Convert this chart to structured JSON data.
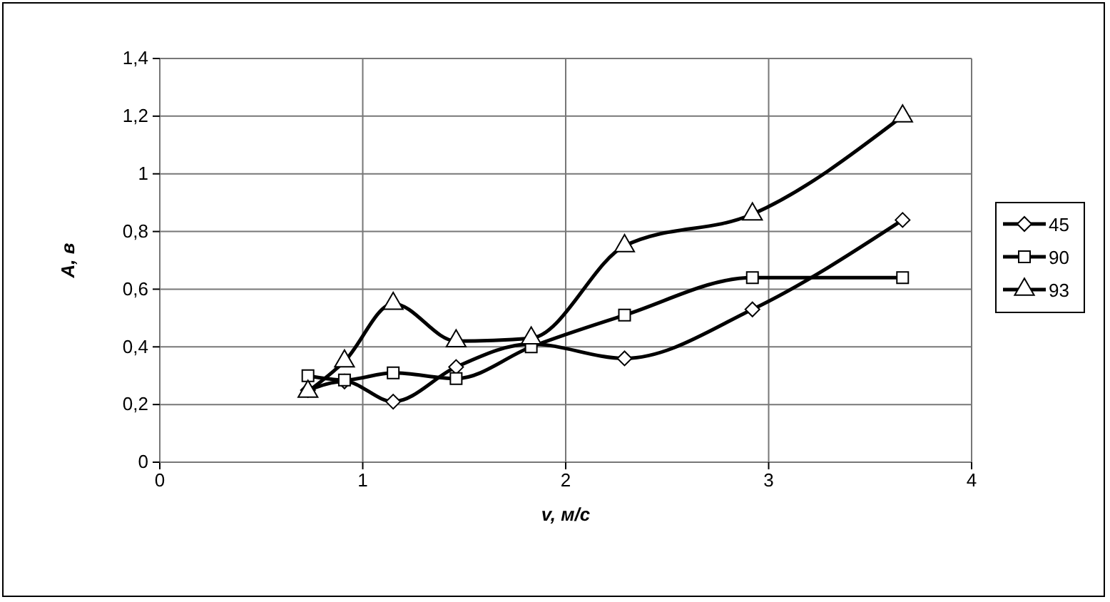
{
  "chart_data": {
    "type": "line",
    "xlabel": "v, м/с",
    "ylabel": "A, в",
    "x": [
      0.73,
      0.91,
      1.15,
      1.46,
      1.83,
      2.29,
      2.92,
      3.66
    ],
    "series": [
      {
        "name": "45",
        "color": "#000000",
        "marker": "diamond",
        "values": [
          0.25,
          0.28,
          0.21,
          0.33,
          0.41,
          0.36,
          0.53,
          0.84
        ]
      },
      {
        "name": "90",
        "color": "#000000",
        "marker": "square",
        "values": [
          0.3,
          0.285,
          0.31,
          0.29,
          0.4,
          0.51,
          0.64,
          0.64
        ]
      },
      {
        "name": "93",
        "color": "#000000",
        "marker": "triangle",
        "values": [
          0.245,
          0.35,
          0.55,
          0.42,
          0.43,
          0.75,
          0.86,
          1.2
        ]
      }
    ],
    "xlim": [
      0,
      4
    ],
    "xticks": [
      0,
      1,
      2,
      3,
      4
    ],
    "ylim": [
      0,
      1.4
    ],
    "yticks": [
      0,
      {
        "value": 0.2,
        "label": "0,2"
      },
      {
        "value": 0.4,
        "label": "0,4"
      },
      {
        "value": 0.6,
        "label": "0,6"
      },
      {
        "value": 0.8,
        "label": "0,8"
      },
      1,
      {
        "value": 1.2,
        "label": "1,2"
      },
      {
        "value": 1.4,
        "label": "1,4"
      }
    ],
    "grid": true,
    "legend": "right",
    "line_style": "solid"
  }
}
